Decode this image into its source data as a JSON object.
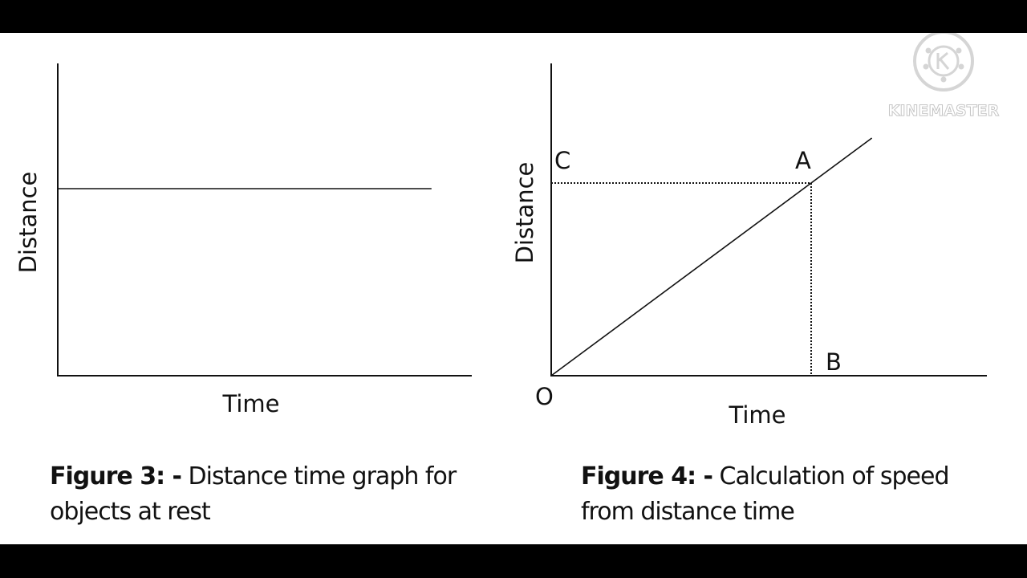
{
  "watermark": {
    "text": "KINEMASTER",
    "icon": "kinemaster-logo-icon"
  },
  "figure3": {
    "caption_label": "Figure 3: -",
    "caption_text": "Distance time graph for objects at rest"
  },
  "figure4": {
    "caption_label": "Figure 4: -",
    "caption_text": "Calculation of speed from distance time"
  },
  "chart_data": [
    {
      "type": "line",
      "xlabel": "Time",
      "ylabel": "Distance",
      "series": [
        {
          "x": [
            0,
            0.85
          ],
          "y": [
            0.5,
            0.5
          ]
        }
      ],
      "xlim": [
        0,
        1
      ],
      "ylim": [
        0,
        1
      ],
      "grid": false
    },
    {
      "type": "line",
      "xlabel": "Time",
      "ylabel": "Distance",
      "series": [
        {
          "x": [
            0,
            0.74
          ],
          "y": [
            0,
            0.74
          ]
        }
      ],
      "guides": [
        {
          "from": "C",
          "to": "A",
          "style": "dotted"
        },
        {
          "from": "A",
          "to": "B",
          "style": "dotted"
        }
      ],
      "points": [
        {
          "label": "O",
          "x": 0,
          "y": 0
        },
        {
          "label": "A",
          "x": 0.6,
          "y": 0.6
        },
        {
          "label": "B",
          "x": 0.6,
          "y": 0
        },
        {
          "label": "C",
          "x": 0,
          "y": 0.6
        }
      ],
      "xlim": [
        0,
        1
      ],
      "ylim": [
        0,
        1
      ],
      "grid": false
    }
  ]
}
